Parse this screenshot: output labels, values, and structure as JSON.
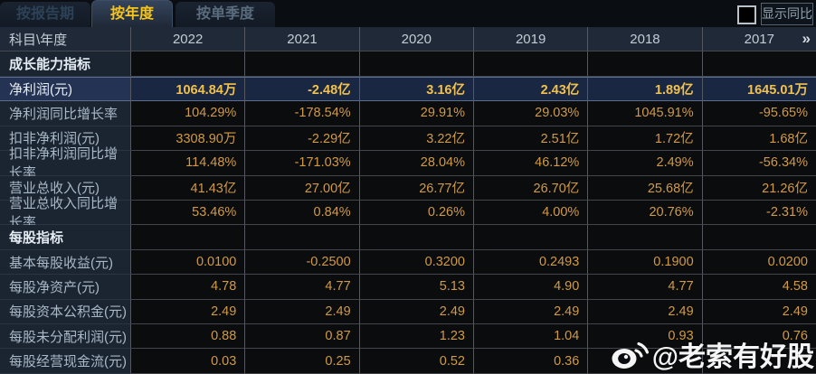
{
  "tabs": [
    {
      "label": "按报告期",
      "active": false
    },
    {
      "label": "按年度",
      "active": true
    },
    {
      "label": "按单季度",
      "active": false
    }
  ],
  "controls": {
    "show_yoy_label": "显示同比",
    "show_yoy_checked": false
  },
  "table": {
    "corner_label": "科目\\年度",
    "year_columns": [
      "2022",
      "2021",
      "2020",
      "2019",
      "2018",
      "2017"
    ],
    "more_years_icon": "»",
    "rows": [
      {
        "type": "section",
        "label": "成长能力指标"
      },
      {
        "type": "data",
        "label": "净利润(元)",
        "highlighted": true,
        "values": [
          "1064.84万",
          "-2.48亿",
          "3.16亿",
          "2.43亿",
          "1.89亿",
          "1645.01万"
        ]
      },
      {
        "type": "data",
        "label": "净利润同比增长率",
        "values": [
          "104.29%",
          "-178.54%",
          "29.91%",
          "29.03%",
          "1045.91%",
          "-95.65%"
        ]
      },
      {
        "type": "data",
        "label": "扣非净利润(元)",
        "values": [
          "3308.90万",
          "-2.29亿",
          "3.22亿",
          "2.51亿",
          "1.72亿",
          "1.68亿"
        ]
      },
      {
        "type": "data",
        "label": "扣非净利润同比增长率",
        "values": [
          "114.48%",
          "-171.03%",
          "28.04%",
          "46.12%",
          "2.49%",
          "-56.34%"
        ]
      },
      {
        "type": "data",
        "label": "营业总收入(元)",
        "values": [
          "41.43亿",
          "27.00亿",
          "26.77亿",
          "26.70亿",
          "25.68亿",
          "21.26亿"
        ]
      },
      {
        "type": "data",
        "label": "营业总收入同比增长率",
        "values": [
          "53.46%",
          "0.84%",
          "0.26%",
          "4.00%",
          "20.76%",
          "-2.31%"
        ]
      },
      {
        "type": "section",
        "label": "每股指标"
      },
      {
        "type": "data",
        "label": "基本每股收益(元)",
        "values": [
          "0.0100",
          "-0.2500",
          "0.3200",
          "0.2493",
          "0.1900",
          "0.0200"
        ]
      },
      {
        "type": "data",
        "label": "每股净资产(元)",
        "values": [
          "4.78",
          "4.77",
          "5.13",
          "4.90",
          "4.77",
          "4.58"
        ]
      },
      {
        "type": "data",
        "label": "每股资本公积金(元)",
        "values": [
          "2.49",
          "2.49",
          "2.49",
          "2.49",
          "2.49",
          "2.49"
        ]
      },
      {
        "type": "data",
        "label": "每股未分配利润(元)",
        "values": [
          "0.88",
          "0.87",
          "1.23",
          "1.04",
          "0.93",
          "0.76"
        ]
      },
      {
        "type": "data",
        "label": "每股经营现金流(元)",
        "values": [
          "0.03",
          "0.25",
          "0.52",
          "0.36",
          "",
          ""
        ]
      }
    ]
  },
  "watermark": {
    "text": "@老索有好股"
  },
  "colors": {
    "accent_gold": "#f4c41f",
    "value_orange": "#d09a46",
    "highlight_value": "#f0c14e",
    "highlight_row_bg": "#1a2742",
    "label_column_bg": "#1b2532",
    "header_row_bg": "#1f2937",
    "page_bg": "#0a0d12"
  }
}
